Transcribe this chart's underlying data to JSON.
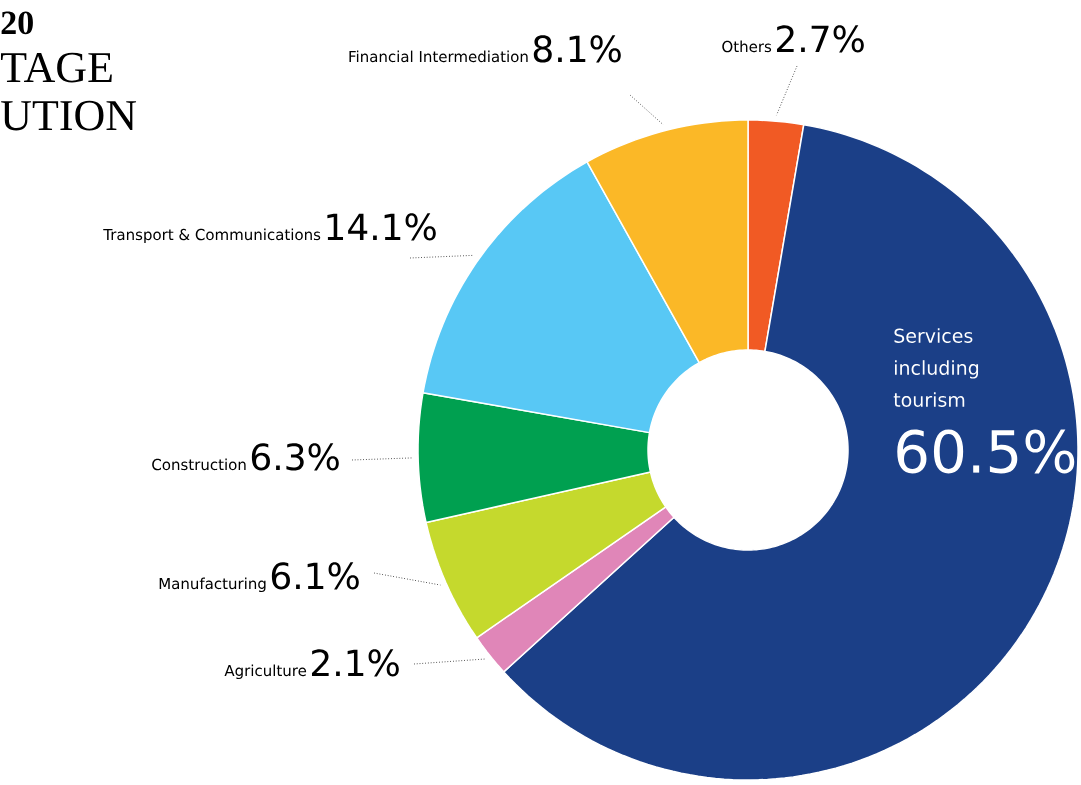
{
  "chart_data": {
    "type": "donut",
    "categories": [
      "Others",
      "Services including tourism",
      "Agriculture",
      "Manufacturing",
      "Construction",
      "Transport & Communications",
      "Financial Intermediation"
    ],
    "values": [
      2.7,
      60.5,
      2.1,
      6.1,
      6.3,
      14.1,
      8.1
    ],
    "colors": [
      "#f15a24",
      "#1b3f87",
      "#e086b8",
      "#c5d92d",
      "#00a050",
      "#58c8f5",
      "#fbb827"
    ],
    "value_labels": [
      "2.7%",
      "60.5%",
      "2.1%",
      "6.1%",
      "6.3%",
      "14.1%",
      "8.1%"
    ],
    "annotations": [
      "20",
      "TAGE",
      "UTION"
    ]
  }
}
